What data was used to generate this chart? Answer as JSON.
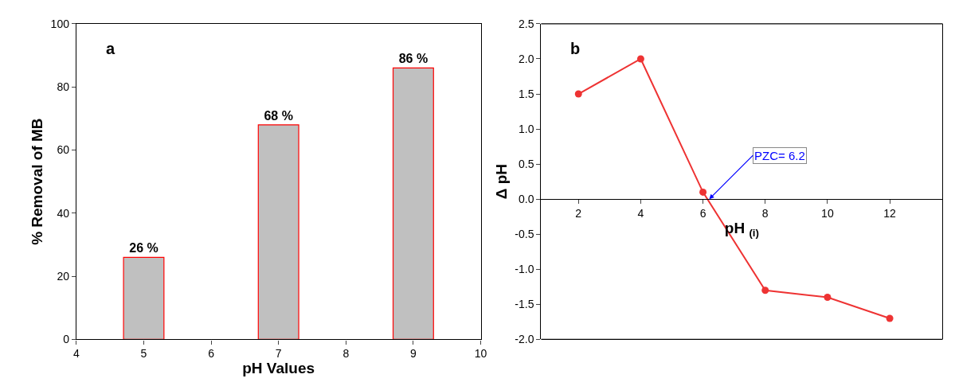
{
  "chart_data": [
    {
      "type": "bar",
      "xlabel": "pH Values",
      "ylabel": "% Removal of MB",
      "x": [
        5,
        7,
        9
      ],
      "series": [
        {
          "color": "#c0c0c0",
          "values": [
            26,
            68,
            86
          ],
          "value_labels": [
            "26 %",
            "68 %",
            "86 %"
          ]
        }
      ],
      "xlim": [
        4,
        10
      ],
      "xticks": [
        4,
        5,
        6,
        7,
        8,
        9,
        10
      ],
      "ylim": [
        0,
        100
      ],
      "yticks": [
        0,
        20,
        40,
        60,
        80,
        100
      ],
      "annotations": [
        "a"
      ]
    },
    {
      "type": "line",
      "xlabel": "pH $_{(i)}$",
      "ylabel": "Δ pH",
      "x": [
        2,
        4,
        6,
        8,
        10,
        12
      ],
      "series": [
        {
          "color": "#ee3333",
          "values": [
            1.5,
            2.0,
            0.1,
            -1.3,
            -1.4,
            -1.7
          ]
        }
      ],
      "xlim": [
        0.8,
        13.7
      ],
      "xticks": [
        2,
        4,
        6,
        8,
        10,
        12
      ],
      "ylim": [
        -2.0,
        2.5
      ],
      "yticks": [
        {
          "value": -2.0,
          "label": "-2.0"
        },
        {
          "value": -1.5,
          "label": "-1.5"
        },
        {
          "value": -1.0,
          "label": "-1.0"
        },
        {
          "value": -0.5,
          "label": "-0.5"
        },
        {
          "value": 0,
          "label": "0.0"
        },
        {
          "value": 0.5,
          "label": "0.5"
        },
        {
          "value": 1.0,
          "label": "1.0"
        },
        {
          "value": 1.5,
          "label": "1.5"
        },
        {
          "value": 2.0,
          "label": "2.0"
        },
        {
          "value": 2.5,
          "label": "2.5"
        }
      ],
      "annotations": [
        "b",
        {
          "text": "PZC= 6.2",
          "x": 6.2,
          "y": 0
        }
      ],
      "marker": "circle",
      "line_style": "solid"
    }
  ]
}
